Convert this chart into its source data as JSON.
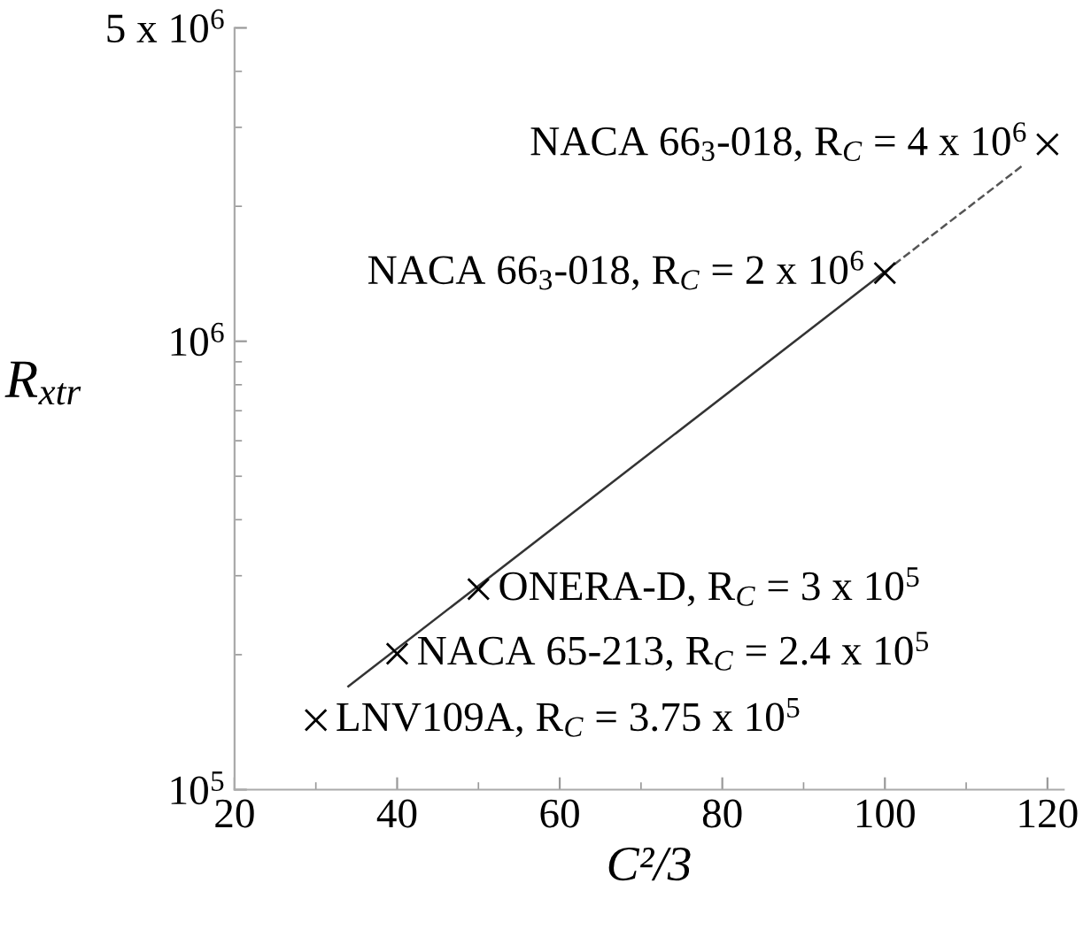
{
  "chart_data": {
    "type": "scatter",
    "xlabel": "C²/3",
    "ylabel": "R$_{xtr}$",
    "log": "y",
    "marker": "cross",
    "grid": false,
    "xlim": [
      20,
      122
    ],
    "xticks": [
      20,
      40,
      60,
      80,
      100,
      120
    ],
    "ylim": [
      100000,
      5000000
    ],
    "yticks": [
      {
        "value": 100000,
        "label": "10$^{5}$"
      },
      {
        "value": 1000000,
        "label": "10$^{6}$"
      },
      {
        "value": 5000000,
        "label": "5 x 10$^{6}$"
      }
    ],
    "x": [
      30,
      40,
      50,
      100,
      120
    ],
    "series": [
      {
        "color": "#000000",
        "values": [
          143000,
          201000,
          280000,
          1420000,
          2750000
        ]
      },
      {
        "type": "line",
        "color": "#333333",
        "line_style": "solid",
        "marker": "none",
        "x": [
          34,
          100
        ],
        "values": [
          170000,
          1430000
        ]
      },
      {
        "type": "line",
        "color": "#555555",
        "line_style": "dashed",
        "marker": "none",
        "x": [
          100,
          117
        ],
        "values": [
          1430000,
          2470000
        ]
      }
    ],
    "annotations": [
      {
        "text": "LNV109A, R$_{C}$ = 3.75 x 10$^{5}$",
        "x": 30,
        "y": 143000
      },
      {
        "text": "NACA 65-213, R$_{C}$ = 2.4 x 10$^{5}$",
        "x": 40,
        "y": 201000
      },
      {
        "text": "ONERA-D, R$_{C}$ = 3 x 10$^{5}$",
        "x": 50,
        "y": 280000
      },
      {
        "text": "NACA 66$_{3}$-018, R$_{C}$ = 2 x 10$^{6}$",
        "x": 100,
        "y": 1420000
      },
      {
        "text": "NACA 66$_{3}$-018, R$_{C}$ = 4 x 10$^{6}$",
        "x": 120,
        "y": 2750000
      }
    ]
  }
}
